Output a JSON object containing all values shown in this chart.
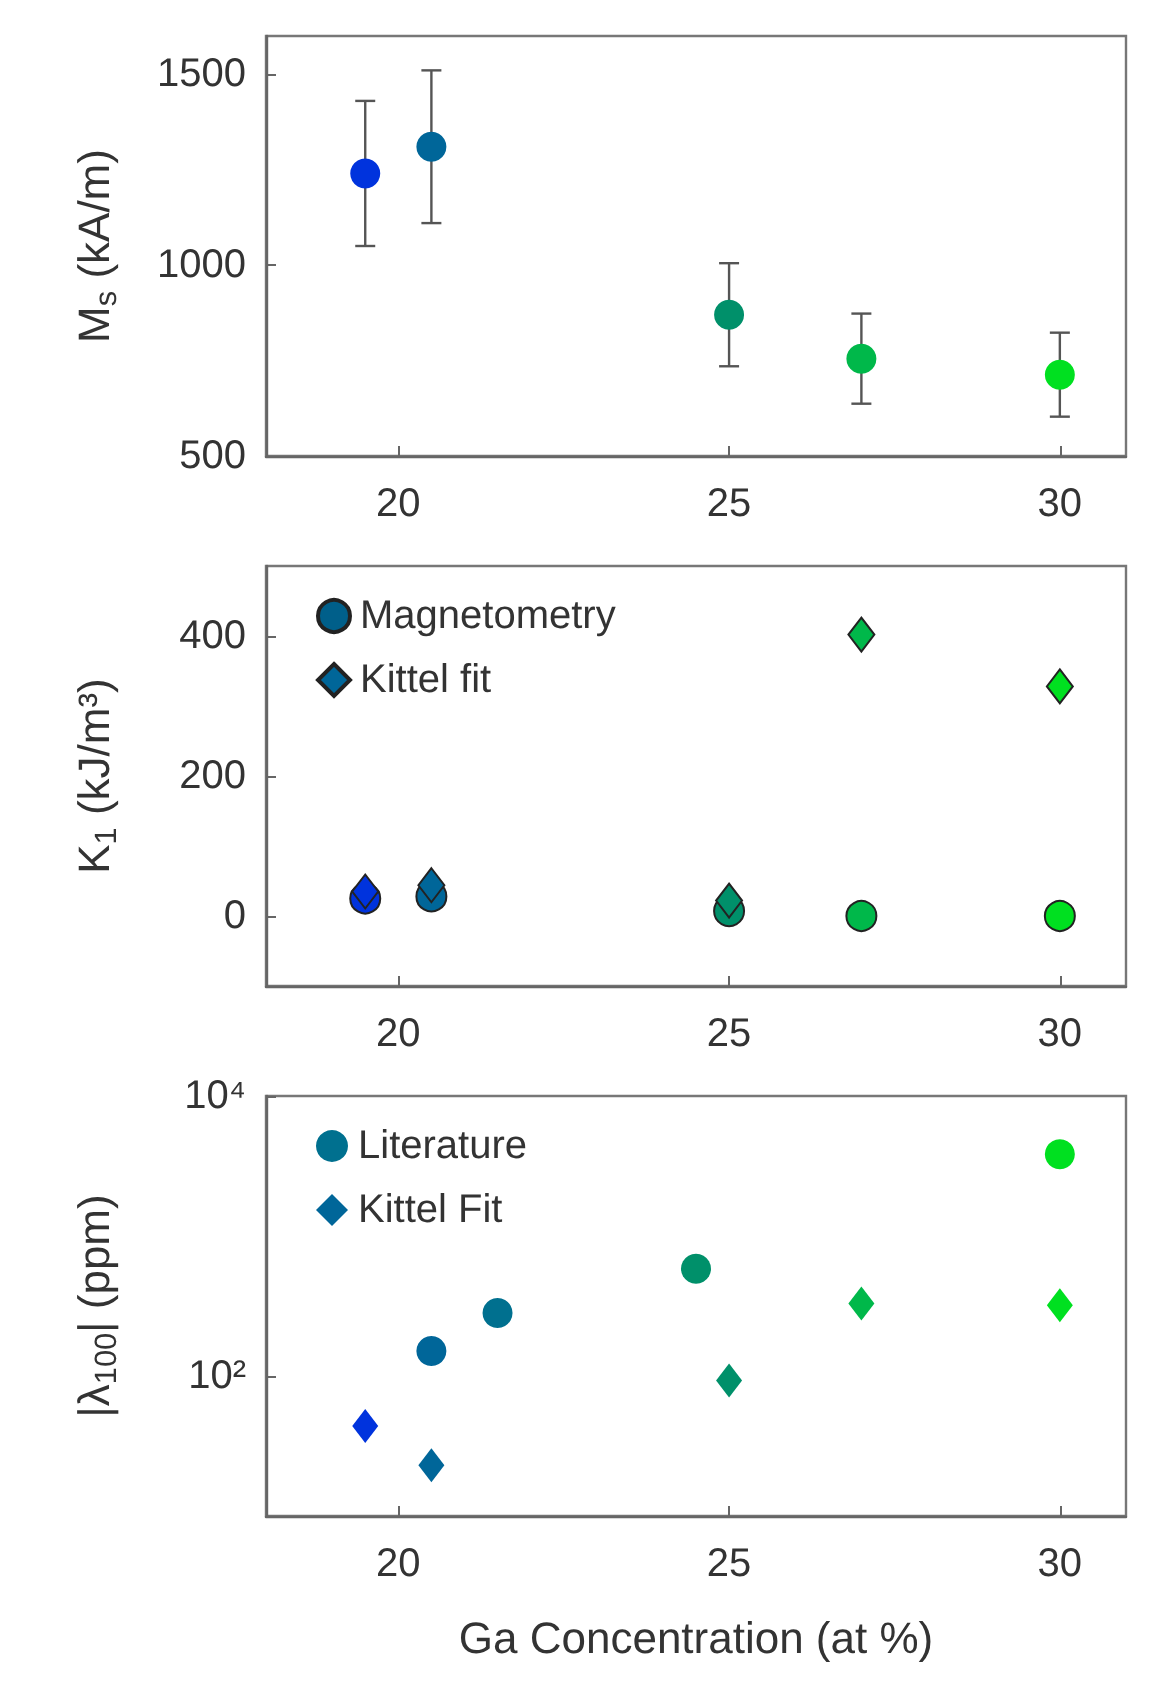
{
  "chart_data": [
    {
      "type": "scatter",
      "ylabel": "M$_{s}$ (kA/m)",
      "x": [
        19.5,
        20.5,
        25,
        27,
        30
      ],
      "values": [
        1240,
        1310,
        870,
        755,
        713
      ],
      "errors": [
        190,
        200,
        135,
        118,
        110
      ],
      "colors": [
        "#0033dd",
        "#006699",
        "#00906a",
        "#00b84a",
        "#00e020"
      ],
      "marker": "circle",
      "xlim": [
        18,
        31
      ],
      "xticks": [
        20,
        25,
        30
      ],
      "ylim": [
        500,
        1600
      ],
      "yticks": [
        500,
        1000,
        1500
      ],
      "grid": false,
      "legend": false
    },
    {
      "type": "scatter",
      "ylabel": "K$_{1}$ (kJ/m³)",
      "x": [
        19.5,
        20.5,
        25,
        27,
        30
      ],
      "series": [
        {
          "name": "Magnetometry",
          "color": "#005f8a",
          "marker": "circle",
          "values": [
            25,
            28,
            7,
            0,
            0
          ],
          "colors": [
            "#0033dd",
            "#006699",
            "#00906a",
            "#00b84a",
            "#00e020"
          ]
        },
        {
          "name": "Kittel fit",
          "color": "#006699",
          "marker": "diamond",
          "values": [
            35,
            44,
            22,
            402,
            328
          ],
          "colors": [
            "#0033dd",
            "#006699",
            "#00906a",
            "#00b84a",
            "#00e020"
          ]
        }
      ],
      "xlim": [
        18,
        31
      ],
      "xticks": [
        20,
        25,
        30
      ],
      "ylim": [
        -100,
        500
      ],
      "yticks": [
        0,
        200,
        400
      ],
      "grid": false,
      "legend": "top left"
    },
    {
      "type": "scatter",
      "xlabel": "Ga Concentration (at %)",
      "ylabel": "|λ$_{100}$| (ppm)",
      "series": [
        {
          "name": "Literature",
          "color": "#00708f",
          "marker": "circle",
          "x": [
            20.5,
            21.5,
            24.5,
            30
          ],
          "values": [
            151,
            282,
            584,
            3830
          ],
          "colors": [
            "#006699",
            "#00708f",
            "#00906a",
            "#00e020"
          ]
        },
        {
          "name": "Kittel Fit",
          "color": "#006699",
          "marker": "diamond",
          "x": [
            19.5,
            20.5,
            25,
            27,
            30
          ],
          "values": [
            44,
            23,
            93,
            329,
            320
          ],
          "colors": [
            "#0033dd",
            "#006699",
            "#00906a",
            "#00b84a",
            "#00e020"
          ]
        }
      ],
      "xlim": [
        18,
        31
      ],
      "xticks": [
        20,
        25,
        30
      ],
      "ylim": [
        10,
        10000
      ],
      "yticks": [
        {
          "value": 100,
          "label": "10²"
        },
        {
          "value": 10000,
          "label": "10⁴"
        }
      ],
      "log": true,
      "grid": false,
      "legend": "top left"
    }
  ]
}
